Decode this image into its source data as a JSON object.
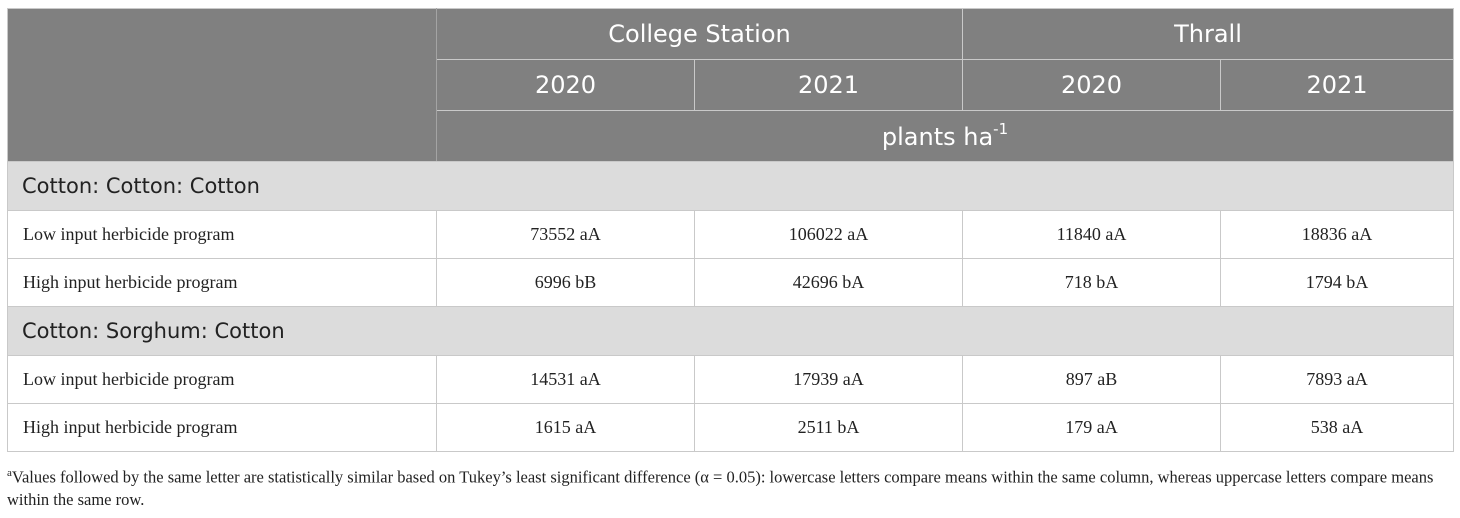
{
  "header": {
    "site1": "College Station",
    "site2": "Thrall",
    "years": [
      "2020",
      "2021",
      "2020",
      "2021"
    ],
    "unit_base": "plants ha",
    "unit_exp": "-1"
  },
  "groups": [
    {
      "title": "Cotton: Cotton: Cotton",
      "rows": [
        {
          "label": "Low input herbicide program",
          "values": [
            "73552 aA",
            "106022 aA",
            "11840 aA",
            "18836 aA"
          ]
        },
        {
          "label": "High input herbicide program",
          "values": [
            "6996 bB",
            "42696 bA",
            "718 bA",
            "1794 bA"
          ]
        }
      ]
    },
    {
      "title": "Cotton: Sorghum: Cotton",
      "rows": [
        {
          "label": "Low input herbicide program",
          "values": [
            "14531 aA",
            "17939 aA",
            "897 aB",
            "7893 aA"
          ]
        },
        {
          "label": "High input herbicide program",
          "values": [
            "1615 aA",
            "2511 bA",
            "179 aA",
            "538 aA"
          ]
        }
      ]
    }
  ],
  "footnote": {
    "marker": "a",
    "text": "Values followed by the same letter are statistically similar based on Tukey’s least significant difference (α = 0.05): lowercase letters compare means within the same column, whereas uppercase letters compare means within the same row."
  }
}
